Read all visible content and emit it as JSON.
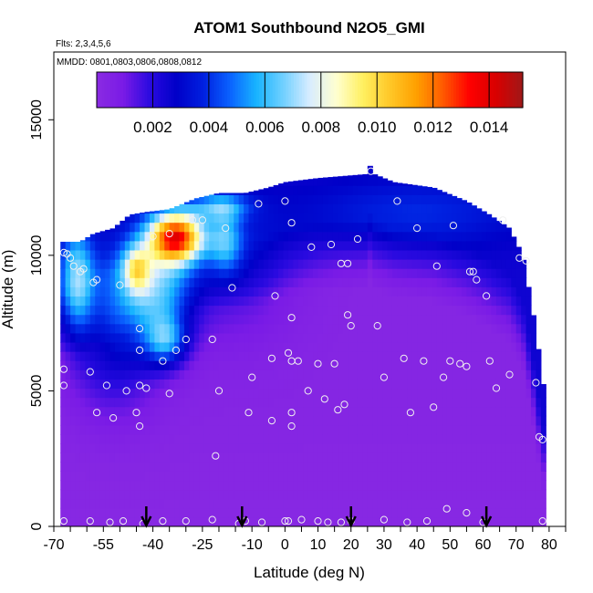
{
  "chart_data": {
    "type": "heatmap",
    "title": "ATOM1 Southbound N2O5_GMI",
    "annotations": [
      "Flts: 2,3,4,5,6",
      "MMDD: 0801,0803,0806,0808,0812"
    ],
    "xlabel": "Latitude (deg N)",
    "ylabel": "Altitude (m)",
    "xlim": [
      -70,
      85
    ],
    "ylim": [
      0,
      17500
    ],
    "x_ticks": [
      -70,
      -55,
      -40,
      -25,
      -10,
      0,
      10,
      20,
      30,
      40,
      50,
      60,
      70,
      80
    ],
    "x_tick_labels": [
      "-70",
      "-55",
      "-40",
      "-25",
      "-10",
      "0",
      "10",
      "20",
      "30",
      "40",
      "50",
      "60",
      "70",
      "80"
    ],
    "y_ticks": [
      0,
      5000,
      10000,
      15000
    ],
    "y_tick_labels": [
      "0",
      "5000",
      "10000",
      "15000"
    ],
    "colorbar": {
      "range": [
        0,
        0.0152
      ],
      "ticks": [
        0.002,
        0.004,
        0.006,
        0.008,
        0.01,
        0.012,
        0.014
      ],
      "tick_labels": [
        "0.002",
        "0.004",
        "0.006",
        "0.008",
        "0.010",
        "0.012",
        "0.014"
      ],
      "colors": [
        "#8a2be2",
        "#7a1be6",
        "#2a0ae0",
        "#0000c8",
        "#0020e0",
        "#0a62ff",
        "#18b4ff",
        "#70d0ff",
        "#d8ecff",
        "#ffffd0",
        "#fff060",
        "#ffc828",
        "#ffa000",
        "#ff5a00",
        "#ff0000",
        "#d80000",
        "#a01818"
      ]
    },
    "arrows_latitude": [
      -42,
      -13,
      20,
      61
    ],
    "sample_points": [
      {
        "x": -67,
        "y": 5800
      },
      {
        "x": -67,
        "y": 5200
      },
      {
        "x": -67,
        "y": 10100
      },
      {
        "x": -66,
        "y": 10050
      },
      {
        "x": -65,
        "y": 9900
      },
      {
        "x": -64,
        "y": 9600
      },
      {
        "x": -62,
        "y": 9400
      },
      {
        "x": -61,
        "y": 9500
      },
      {
        "x": -58,
        "y": 9000
      },
      {
        "x": -57,
        "y": 9100
      },
      {
        "x": -59,
        "y": 5700
      },
      {
        "x": -54,
        "y": 5200
      },
      {
        "x": -52,
        "y": 4000
      },
      {
        "x": -57,
        "y": 4200
      },
      {
        "x": -50,
        "y": 8900
      },
      {
        "x": -48,
        "y": 5000
      },
      {
        "x": -45,
        "y": 4200
      },
      {
        "x": -44,
        "y": 3700
      },
      {
        "x": -44,
        "y": 5200
      },
      {
        "x": -42,
        "y": 5100
      },
      {
        "x": -44,
        "y": 6500
      },
      {
        "x": -44,
        "y": 7300
      },
      {
        "x": -37,
        "y": 6100
      },
      {
        "x": -35,
        "y": 4900
      },
      {
        "x": -33,
        "y": 6500
      },
      {
        "x": -30,
        "y": 6900
      },
      {
        "x": -40,
        "y": 10700
      },
      {
        "x": -35,
        "y": 10800
      },
      {
        "x": -28,
        "y": 11300
      },
      {
        "x": -25,
        "y": 11300
      },
      {
        "x": -18,
        "y": 11000
      },
      {
        "x": -22,
        "y": 6900
      },
      {
        "x": -21,
        "y": 2600
      },
      {
        "x": -20,
        "y": 5000
      },
      {
        "x": -16,
        "y": 8800
      },
      {
        "x": -11,
        "y": 4200
      },
      {
        "x": -10,
        "y": 5500
      },
      {
        "x": -8,
        "y": 11900
      },
      {
        "x": -4,
        "y": 6200
      },
      {
        "x": -3,
        "y": 8500
      },
      {
        "x": -4,
        "y": 3900
      },
      {
        "x": 0,
        "y": 12000
      },
      {
        "x": 1,
        "y": 6400
      },
      {
        "x": 2,
        "y": 6100
      },
      {
        "x": 2,
        "y": 7700
      },
      {
        "x": 2,
        "y": 11200
      },
      {
        "x": 4,
        "y": 6100
      },
      {
        "x": 2,
        "y": 4200
      },
      {
        "x": 2,
        "y": 3700
      },
      {
        "x": 7,
        "y": 5000
      },
      {
        "x": 10,
        "y": 6000
      },
      {
        "x": 8,
        "y": 10300
      },
      {
        "x": 12,
        "y": 4700
      },
      {
        "x": 14,
        "y": 10400
      },
      {
        "x": 15,
        "y": 6000
      },
      {
        "x": 16,
        "y": 4300
      },
      {
        "x": 17,
        "y": 9700
      },
      {
        "x": 18,
        "y": 4500
      },
      {
        "x": 19,
        "y": 9700
      },
      {
        "x": 19,
        "y": 7800
      },
      {
        "x": 20,
        "y": 7400
      },
      {
        "x": 22,
        "y": 10600
      },
      {
        "x": 26,
        "y": 13100
      },
      {
        "x": 28,
        "y": 7400
      },
      {
        "x": 30,
        "y": 5500
      },
      {
        "x": 34,
        "y": 12000
      },
      {
        "x": 36,
        "y": 6200
      },
      {
        "x": 38,
        "y": 4200
      },
      {
        "x": 40,
        "y": 11000
      },
      {
        "x": 42,
        "y": 6100
      },
      {
        "x": 45,
        "y": 4400
      },
      {
        "x": 46,
        "y": 9600
      },
      {
        "x": 48,
        "y": 5500
      },
      {
        "x": 50,
        "y": 6100
      },
      {
        "x": 51,
        "y": 11100
      },
      {
        "x": 53,
        "y": 6000
      },
      {
        "x": 55,
        "y": 5900
      },
      {
        "x": 56,
        "y": 9400
      },
      {
        "x": 57,
        "y": 9400
      },
      {
        "x": 58,
        "y": 9100
      },
      {
        "x": 61,
        "y": 8500
      },
      {
        "x": 62,
        "y": 6100
      },
      {
        "x": 64,
        "y": 5100
      },
      {
        "x": 66,
        "y": 11300
      },
      {
        "x": 68,
        "y": 5600
      },
      {
        "x": 71,
        "y": 9900
      },
      {
        "x": 73,
        "y": 9800
      },
      {
        "x": 76,
        "y": 5300
      },
      {
        "x": 77,
        "y": 3300
      },
      {
        "x": 78,
        "y": 3200
      },
      {
        "x": -67,
        "y": 200
      },
      {
        "x": -59,
        "y": 200
      },
      {
        "x": -53,
        "y": 150
      },
      {
        "x": -49,
        "y": 200
      },
      {
        "x": -43,
        "y": 100
      },
      {
        "x": -37,
        "y": 200
      },
      {
        "x": -30,
        "y": 200
      },
      {
        "x": -22,
        "y": 250
      },
      {
        "x": -14,
        "y": 100
      },
      {
        "x": -12,
        "y": 200
      },
      {
        "x": -7,
        "y": 150
      },
      {
        "x": 0,
        "y": 200
      },
      {
        "x": 1,
        "y": 200
      },
      {
        "x": 5,
        "y": 250
      },
      {
        "x": 10,
        "y": 200
      },
      {
        "x": 13,
        "y": 150
      },
      {
        "x": 17,
        "y": 150
      },
      {
        "x": 20,
        "y": 200
      },
      {
        "x": 30,
        "y": 250
      },
      {
        "x": 37,
        "y": 150
      },
      {
        "x": 43,
        "y": 200
      },
      {
        "x": 49,
        "y": 650
      },
      {
        "x": 55,
        "y": 500
      },
      {
        "x": 60,
        "y": 150
      },
      {
        "x": 78,
        "y": 200
      }
    ]
  }
}
